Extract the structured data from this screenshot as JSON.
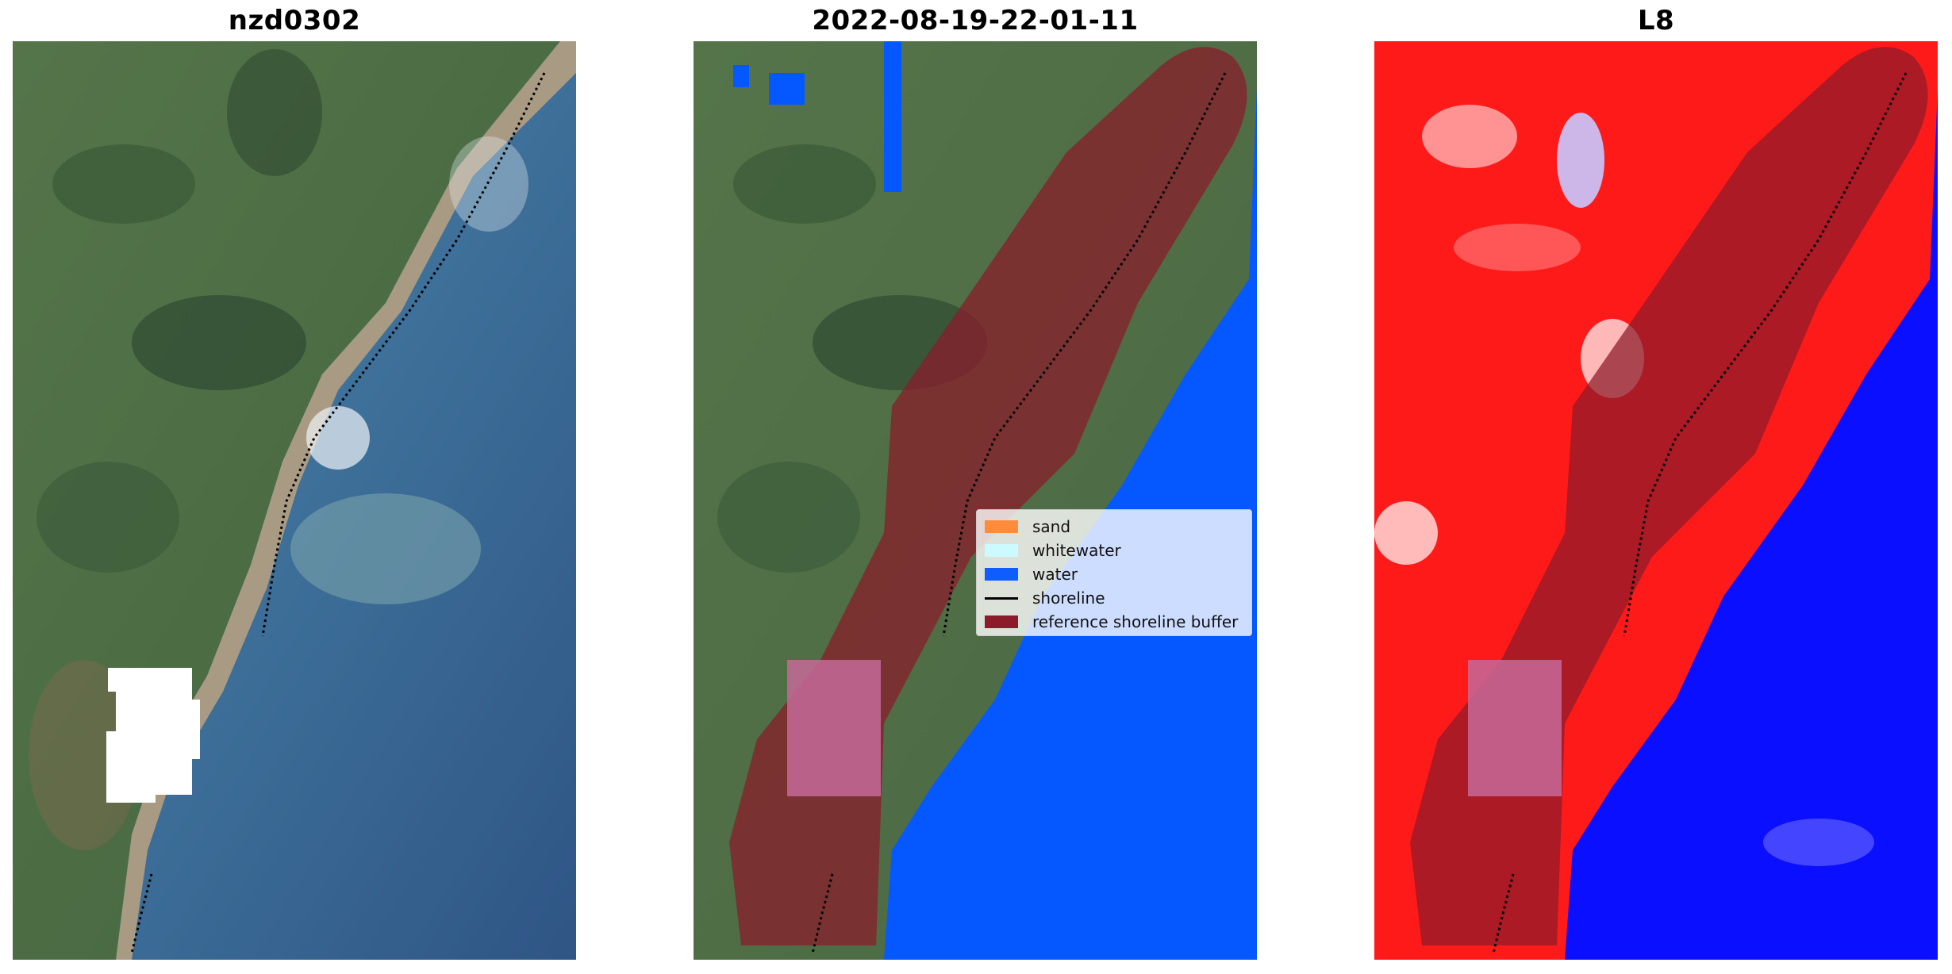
{
  "panels": [
    {
      "title": "nzd0302"
    },
    {
      "title": "2022-08-19-22-01-11"
    },
    {
      "title": "L8"
    }
  ],
  "legend": {
    "items": [
      {
        "label": "sand",
        "color": "#ff8c3a",
        "kind": "patch"
      },
      {
        "label": "whitewater",
        "color": "#ccfaff",
        "kind": "patch"
      },
      {
        "label": "water",
        "color": "#0f5cff",
        "kind": "patch"
      },
      {
        "label": "shoreline",
        "color": "#000000",
        "kind": "line"
      },
      {
        "label": "reference shoreline buffer",
        "color": "#8b1a2a",
        "kind": "patch"
      }
    ]
  },
  "colors": {
    "land_green": "#4f7446",
    "ocean": "#2f5a88",
    "classified_water": "#0558ff",
    "buffer": "#8b1a2a",
    "index_land": "#ff1a1a",
    "index_water": "#0a10ff"
  }
}
